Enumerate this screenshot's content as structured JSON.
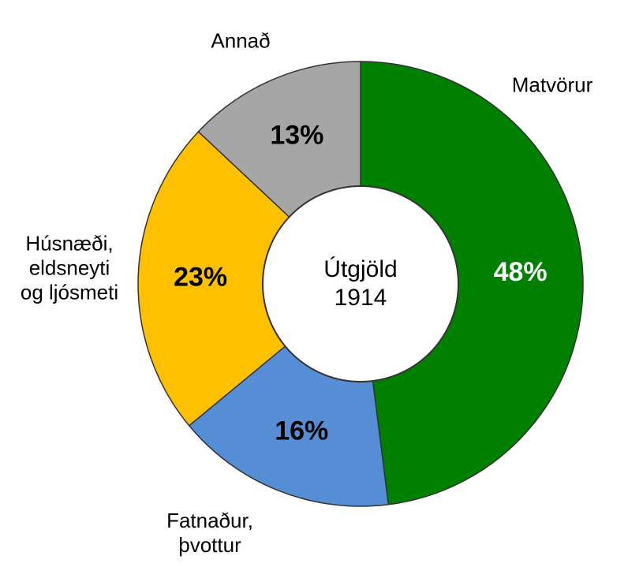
{
  "chart_data": {
    "type": "donut",
    "title": "Útgjöld 1914",
    "categories": [
      "Matvörur",
      "Fatnaður, þvottur",
      "Húsnæði, eldsneyti og ljósmeti",
      "Annað"
    ],
    "values": [
      48,
      16,
      23,
      13
    ],
    "value_labels": [
      "48%",
      "16%",
      "23%",
      "13%"
    ],
    "colors": [
      "#008000",
      "#558ed5",
      "#ffc000",
      "#a6a6a6"
    ],
    "label_colors": [
      "#ffffff",
      "#000000",
      "#000000",
      "#000000"
    ]
  }
}
